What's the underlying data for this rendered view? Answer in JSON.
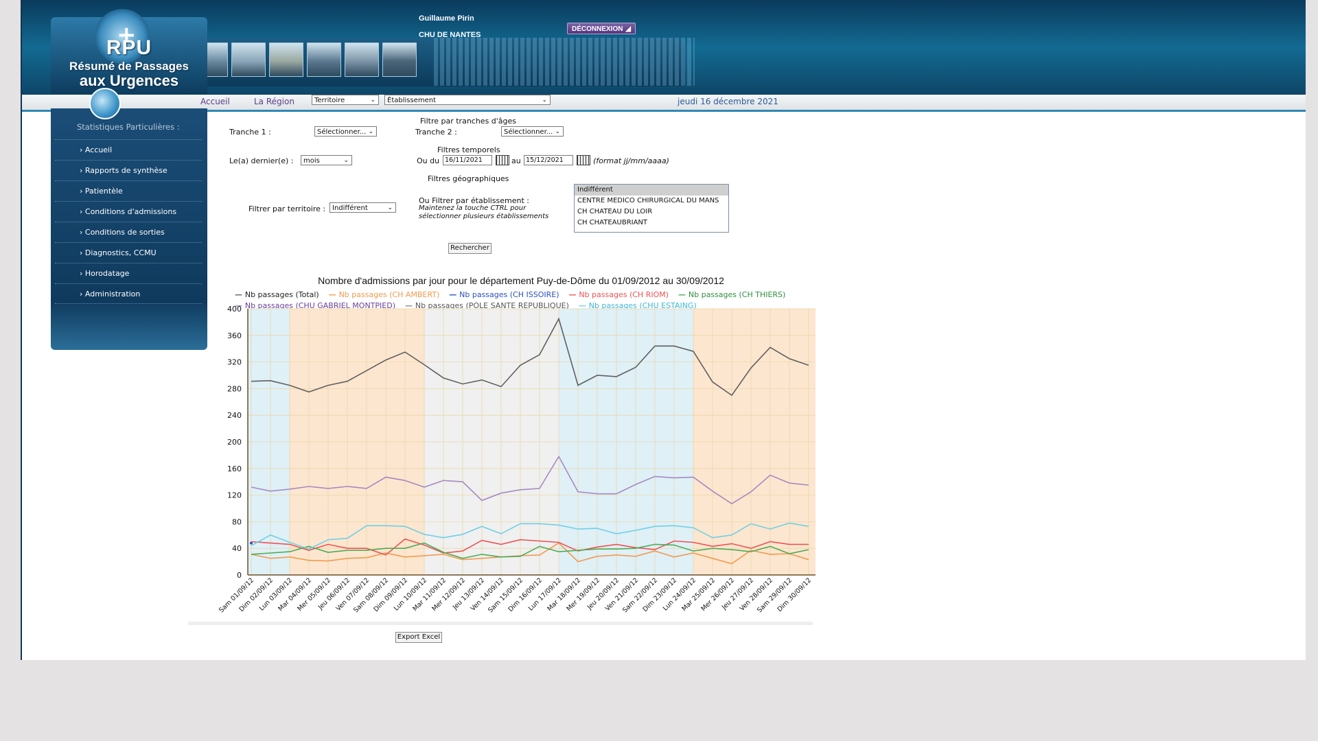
{
  "header": {
    "logo": {
      "cross": "+",
      "abbr": "RPU",
      "line1": "Résumé de Passages",
      "line2": "aux Urgences"
    },
    "user_name": "Guillaume Pirin",
    "user_org": "CHU DE NANTES",
    "logout_label": "DÉCONNEXION",
    "photos": [
      "#6a8aa0",
      "#8aa6b8",
      "#9aa8a0",
      "#5a7890",
      "#7e94a8",
      "#4a6478"
    ]
  },
  "nav": {
    "home": "Accueil",
    "region": "La Région",
    "territory_select": "Territoire",
    "establishment_select": "Établissement",
    "date": "jeudi 16 décembre 2021"
  },
  "sidebar": {
    "title": "Statistiques Particulières :",
    "items": [
      "› Accueil",
      "› Rapports de synthèse",
      "› Patientèle",
      "› Conditions d'admissions",
      "› Conditions de sorties",
      "› Diagnostics, CCMU",
      "› Horodatage",
      "› Administration"
    ]
  },
  "filters": {
    "age_title": "Filtre par tranches d'âges",
    "tranche1_label": "Tranche 1 :",
    "tranche1_value": "Sélectionner...",
    "tranche2_label": "Tranche 2 :",
    "tranche2_value": "Sélectionner...",
    "time_title": "Filtres temporels",
    "last_label": "Le(a) dernier(e) :",
    "last_value": "mois",
    "from_label": "Ou du",
    "from_value": "16/11/2021",
    "to_label": "au",
    "to_value": "15/12/2021",
    "format_hint": "(format jj/mm/aaaa)",
    "geo_title": "Filtres géographiques",
    "territory_label": "Filtrer par territoire :",
    "territory_value": "Indifférent",
    "estab_label": "Ou Filtrer par établissement :",
    "estab_hint1": "Maintenez la touche CTRL pour",
    "estab_hint2": "sélectionner plusieurs établissements",
    "estab_options": [
      "Indifférent",
      "CENTRE MEDICO CHIRURGICAL DU MANS",
      "CH CHATEAU DU LOIR",
      "CH CHATEAUBRIANT"
    ],
    "search_button": "Rechercher"
  },
  "export_button": "Export Excel",
  "chart_data": {
    "type": "line",
    "title": "Nombre d'admissions par jour pour le département Puy-de-Dôme du 01/09/2012 au 30/09/2012",
    "ylim": [
      0,
      400
    ],
    "yticks": [
      0,
      40,
      80,
      120,
      160,
      200,
      240,
      280,
      320,
      360,
      400
    ],
    "grid": true,
    "categories": [
      "Sam 01/09/12",
      "Dim 02/09/12",
      "Lun 03/09/12",
      "Mar 04/09/12",
      "Mer 05/09/12",
      "Jeu 06/09/12",
      "Ven 07/09/12",
      "Sam 08/09/12",
      "Dim 09/09/12",
      "Lun 10/09/12",
      "Mar 11/09/12",
      "Mer 12/09/12",
      "Jeu 13/09/12",
      "Ven 14/09/12",
      "Sam 15/09/12",
      "Dim 16/09/12",
      "Lun 17/09/12",
      "Mar 18/09/12",
      "Mer 19/09/12",
      "Jeu 20/09/12",
      "Ven 21/09/12",
      "Sam 22/09/12",
      "Dim 23/09/12",
      "Lun 24/09/12",
      "Mar 25/09/12",
      "Mer 26/09/12",
      "Jeu 27/09/12",
      "Ven 28/09/12",
      "Sam 29/09/12",
      "Dim 30/09/12"
    ],
    "bands": [
      {
        "from": 0,
        "to": 2,
        "color": "#dff0f7"
      },
      {
        "from": 2,
        "to": 9,
        "color": "#fde6cf"
      },
      {
        "from": 9,
        "to": 16,
        "color": "#f0f0f0"
      },
      {
        "from": 16,
        "to": 23,
        "color": "#dff0f7"
      },
      {
        "from": 23,
        "to": 29,
        "color": "#fde6cf"
      }
    ],
    "series": [
      {
        "name": "Nb passages (Total)",
        "color": "#5f5f5f",
        "legend_text_color": "#222222",
        "values": [
          291,
          292,
          285,
          275,
          285,
          291,
          307,
          323,
          335,
          316,
          296,
          287,
          293,
          283,
          315,
          331,
          385,
          285,
          300,
          298,
          312,
          344,
          344,
          336,
          290,
          270,
          311,
          342,
          325,
          315
        ]
      },
      {
        "name": "Nb passages (CH AMBERT)",
        "color": "#f39a4c",
        "legend_text_color": "#f39a4c",
        "values": [
          31,
          25,
          27,
          22,
          21,
          25,
          26,
          33,
          27,
          29,
          31,
          23,
          25,
          27,
          29,
          30,
          48,
          20,
          28,
          30,
          28,
          36,
          27,
          33,
          25,
          17,
          37,
          31,
          32,
          23
        ]
      },
      {
        "name": "Nb passages (CH ISSOIRE)",
        "color": "#2a4fbe",
        "legend_text_color": "#2a4fbe",
        "values": [
          48,
          null,
          null,
          null,
          null,
          null,
          null,
          null,
          null,
          null,
          null,
          null,
          null,
          null,
          null,
          null,
          null,
          null,
          null,
          null,
          null,
          null,
          null,
          null,
          null,
          null,
          null,
          null,
          null,
          null
        ]
      },
      {
        "name": "Nb passages (CH RIOM)",
        "color": "#ee5252",
        "legend_text_color": "#ee5252",
        "values": [
          50,
          48,
          46,
          37,
          46,
          40,
          40,
          30,
          54,
          45,
          33,
          36,
          52,
          46,
          53,
          51,
          49,
          36,
          42,
          46,
          41,
          38,
          51,
          49,
          43,
          47,
          40,
          50,
          46,
          46
        ]
      },
      {
        "name": "Nb passages (CH THIERS)",
        "color": "#4bab58",
        "legend_text_color": "#2e8f3e",
        "values": [
          31,
          33,
          35,
          43,
          34,
          37,
          37,
          40,
          40,
          48,
          34,
          25,
          31,
          27,
          28,
          43,
          35,
          37,
          39,
          39,
          40,
          46,
          45,
          36,
          40,
          38,
          35,
          43,
          32,
          38
        ]
      },
      {
        "name": "Nb passages (CHU GABRIEL MONTPIED)",
        "color": "#a589c2",
        "legend_text_color": "#6a3f9a",
        "values": [
          132,
          126,
          129,
          133,
          130,
          133,
          130,
          147,
          142,
          132,
          142,
          140,
          112,
          123,
          128,
          130,
          178,
          125,
          122,
          122,
          136,
          148,
          146,
          147,
          126,
          107,
          125,
          150,
          138,
          135
        ]
      },
      {
        "name": "Nb passages (POLE SANTE REPUBLIQUE)",
        "color": "#8b8b8b",
        "legend_text_color": "#555555",
        "values": [
          null,
          null,
          null,
          null,
          null,
          null,
          null,
          null,
          null,
          null,
          null,
          null,
          null,
          null,
          null,
          null,
          null,
          null,
          null,
          null,
          null,
          null,
          null,
          null,
          null,
          null,
          null,
          null,
          null,
          null
        ]
      },
      {
        "name": "Nb passages (CHU ESTAING)",
        "color": "#6fcfe6",
        "legend_text_color": "#3bb7d8",
        "values": [
          44,
          60,
          49,
          39,
          53,
          55,
          74,
          74,
          73,
          61,
          56,
          61,
          73,
          62,
          77,
          77,
          75,
          69,
          70,
          62,
          67,
          73,
          74,
          71,
          56,
          60,
          77,
          69,
          78,
          73
        ]
      }
    ]
  }
}
